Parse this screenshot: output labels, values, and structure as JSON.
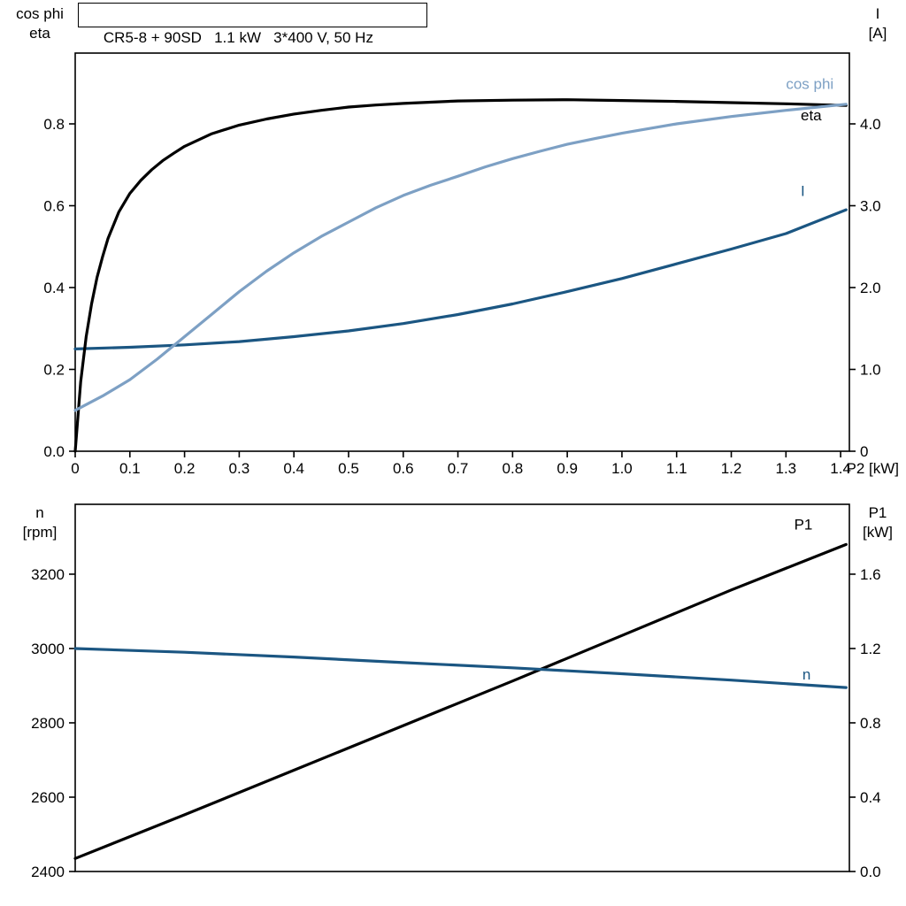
{
  "page": {
    "background": "#ffffff"
  },
  "title": "CR5-8 + 90SD   1.1 kW   3*400 V, 50 Hz",
  "colors": {
    "black": "#000000",
    "light_blue": "#7da0c4",
    "dark_blue": "#1b5682"
  },
  "chart_data": [
    {
      "id": "motor-electrical-curves",
      "type": "line",
      "title": "CR5-8 + 90SD   1.1 kW   3*400 V, 50 Hz",
      "x_axis": {
        "label": "P2 [kW]",
        "min": 0,
        "max": 1.416,
        "ticks": [
          0,
          0.1,
          0.2,
          0.3,
          0.4,
          0.5,
          0.6,
          0.7,
          0.8,
          0.9,
          1.0,
          1.1,
          1.2,
          1.3,
          1.4
        ],
        "tick_labels": [
          "0",
          "0.1",
          "0.2",
          "0.3",
          "0.4",
          "0.5",
          "0.6",
          "0.7",
          "0.8",
          "0.9",
          "1.0",
          "1.1",
          "1.2",
          "1.3",
          "1.4"
        ],
        "show_tick_labels": true
      },
      "left_axis": {
        "header_lines": [
          "cos phi",
          "eta"
        ],
        "min": 0,
        "max": 0.973,
        "ticks": [
          0,
          0.2,
          0.4,
          0.6,
          0.8
        ],
        "tick_labels": [
          "0.0",
          "0.2",
          "0.4",
          "0.6",
          "0.8"
        ]
      },
      "right_axis": {
        "header_lines": [
          "I",
          "[A]"
        ],
        "min": 0,
        "max": 4.865,
        "ticks": [
          0,
          1,
          2,
          3,
          4
        ],
        "tick_labels": [
          "0",
          "1.0",
          "2.0",
          "3.0",
          "4.0"
        ]
      },
      "series": [
        {
          "name": "I",
          "axis": "right",
          "color": "#1b5682",
          "label": {
            "text": "I",
            "x": 1.327,
            "value": 3.12
          },
          "points": [
            [
              0,
              1.25
            ],
            [
              0.1,
              1.27
            ],
            [
              0.2,
              1.3
            ],
            [
              0.3,
              1.34
            ],
            [
              0.4,
              1.4
            ],
            [
              0.5,
              1.47
            ],
            [
              0.6,
              1.56
            ],
            [
              0.7,
              1.67
            ],
            [
              0.8,
              1.8
            ],
            [
              0.9,
              1.95
            ],
            [
              1.0,
              2.11
            ],
            [
              1.1,
              2.29
            ],
            [
              1.2,
              2.47
            ],
            [
              1.3,
              2.66
            ],
            [
              1.41,
              2.95
            ]
          ]
        },
        {
          "name": "eta",
          "axis": "left",
          "color": "#000000",
          "label": {
            "text": "eta",
            "x": 1.327,
            "value": 0.809
          },
          "points": [
            [
              0,
              0
            ],
            [
              0.01,
              0.17
            ],
            [
              0.02,
              0.28
            ],
            [
              0.03,
              0.36
            ],
            [
              0.04,
              0.425
            ],
            [
              0.05,
              0.475
            ],
            [
              0.06,
              0.52
            ],
            [
              0.08,
              0.585
            ],
            [
              0.1,
              0.63
            ],
            [
              0.12,
              0.662
            ],
            [
              0.14,
              0.688
            ],
            [
              0.16,
              0.71
            ],
            [
              0.18,
              0.728
            ],
            [
              0.2,
              0.745
            ],
            [
              0.25,
              0.776
            ],
            [
              0.3,
              0.797
            ],
            [
              0.35,
              0.812
            ],
            [
              0.4,
              0.824
            ],
            [
              0.45,
              0.833
            ],
            [
              0.5,
              0.841
            ],
            [
              0.55,
              0.846
            ],
            [
              0.6,
              0.85
            ],
            [
              0.7,
              0.856
            ],
            [
              0.8,
              0.858
            ],
            [
              0.9,
              0.859
            ],
            [
              1.0,
              0.857
            ],
            [
              1.1,
              0.855
            ],
            [
              1.2,
              0.852
            ],
            [
              1.3,
              0.849
            ],
            [
              1.41,
              0.845
            ]
          ]
        },
        {
          "name": "cos phi",
          "axis": "left",
          "color": "#7da0c4",
          "label": {
            "text": "cos phi",
            "x": 1.3,
            "value": 0.885
          },
          "points": [
            [
              0,
              0.1
            ],
            [
              0.05,
              0.135
            ],
            [
              0.1,
              0.175
            ],
            [
              0.15,
              0.225
            ],
            [
              0.2,
              0.28
            ],
            [
              0.25,
              0.335
            ],
            [
              0.3,
              0.39
            ],
            [
              0.35,
              0.44
            ],
            [
              0.4,
              0.485
            ],
            [
              0.45,
              0.525
            ],
            [
              0.5,
              0.56
            ],
            [
              0.55,
              0.595
            ],
            [
              0.6,
              0.625
            ],
            [
              0.65,
              0.65
            ],
            [
              0.7,
              0.672
            ],
            [
              0.75,
              0.695
            ],
            [
              0.8,
              0.715
            ],
            [
              0.85,
              0.733
            ],
            [
              0.9,
              0.75
            ],
            [
              0.95,
              0.764
            ],
            [
              1.0,
              0.777
            ],
            [
              1.1,
              0.8
            ],
            [
              1.2,
              0.818
            ],
            [
              1.3,
              0.833
            ],
            [
              1.41,
              0.848
            ]
          ]
        }
      ]
    },
    {
      "id": "speed-power-curves",
      "type": "line",
      "title": "",
      "x_axis": {
        "label": "",
        "min": 0,
        "max": 1.416,
        "ticks": [],
        "tick_labels": [],
        "show_tick_labels": false
      },
      "left_axis": {
        "header_lines": [
          "n",
          "[rpm]"
        ],
        "min": 2400,
        "max": 3388,
        "ticks": [
          2400,
          2600,
          2800,
          3000,
          3200
        ],
        "tick_labels": [
          "2400",
          "2600",
          "2800",
          "3000",
          "3200"
        ]
      },
      "right_axis": {
        "header_lines": [
          "P1",
          "[kW]"
        ],
        "min": 0,
        "max": 1.976,
        "ticks": [
          0,
          0.4,
          0.8,
          1.2,
          1.6
        ],
        "tick_labels": [
          "0.0",
          "0.4",
          "0.8",
          "1.2",
          "1.6"
        ]
      },
      "series": [
        {
          "name": "P1",
          "axis": "right",
          "color": "#000000",
          "label": {
            "text": "P1",
            "x": 1.315,
            "value": 1.84
          },
          "points": [
            [
              0,
              0.07
            ],
            [
              0.2,
              0.305
            ],
            [
              0.4,
              0.545
            ],
            [
              0.6,
              0.785
            ],
            [
              0.8,
              1.025
            ],
            [
              1.0,
              1.27
            ],
            [
              1.2,
              1.515
            ],
            [
              1.41,
              1.76
            ]
          ]
        },
        {
          "name": "n",
          "axis": "left",
          "color": "#1b5682",
          "label": {
            "text": "n",
            "x": 1.33,
            "value": 2917
          },
          "points": [
            [
              0,
              3000
            ],
            [
              0.2,
              2990
            ],
            [
              0.4,
              2977
            ],
            [
              0.6,
              2962
            ],
            [
              0.8,
              2948
            ],
            [
              1.0,
              2932
            ],
            [
              1.2,
              2915
            ],
            [
              1.41,
              2895
            ]
          ]
        }
      ]
    }
  ]
}
